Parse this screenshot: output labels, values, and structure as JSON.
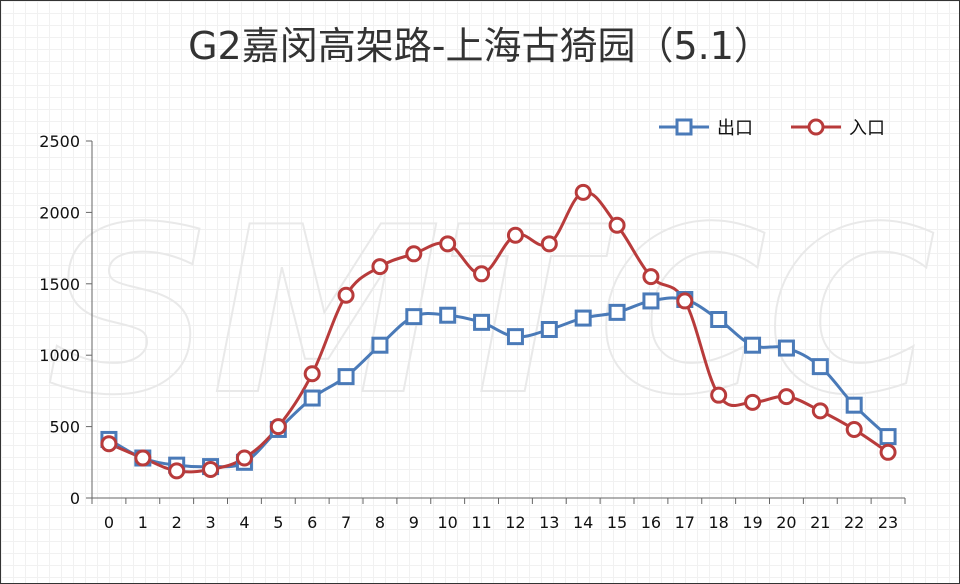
{
  "chart_data": {
    "type": "line",
    "title": "G2嘉闵高架路-上海古猗园（5.1）",
    "watermark": "SMTCC",
    "categories": [
      "0",
      "1",
      "2",
      "3",
      "4",
      "5",
      "6",
      "7",
      "8",
      "9",
      "10",
      "11",
      "12",
      "13",
      "14",
      "15",
      "16",
      "17",
      "18",
      "19",
      "20",
      "21",
      "22",
      "23"
    ],
    "ylim": [
      0,
      2500
    ],
    "yticks": [
      0,
      500,
      1000,
      1500,
      2000,
      2500
    ],
    "grid": true,
    "legend_position": "top-right",
    "series": [
      {
        "name": "出口",
        "color": "#4a7ab8",
        "marker": "square",
        "values": [
          410,
          280,
          230,
          220,
          250,
          480,
          700,
          850,
          1070,
          1270,
          1280,
          1230,
          1130,
          1180,
          1260,
          1300,
          1380,
          1390,
          1250,
          1070,
          1050,
          920,
          650,
          430
        ]
      },
      {
        "name": "入口",
        "color": "#b83b3b",
        "marker": "circle",
        "values": [
          380,
          280,
          190,
          200,
          280,
          500,
          870,
          1420,
          1620,
          1710,
          1780,
          1570,
          1840,
          1780,
          2140,
          1910,
          1550,
          1380,
          720,
          670,
          710,
          610,
          480,
          320
        ]
      }
    ]
  }
}
